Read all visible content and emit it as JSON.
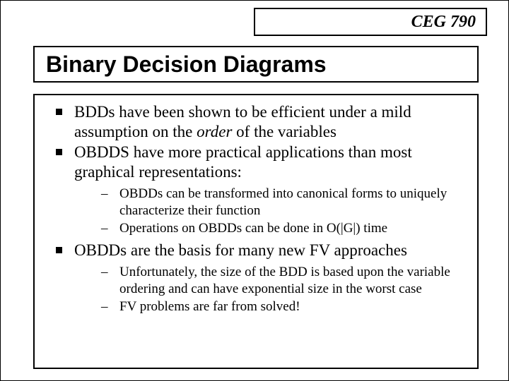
{
  "course": "CEG 790",
  "title": "Binary Decision Diagrams",
  "bullets": {
    "b1_a": "BDDs have been shown to be efficient under a mild assumption on the ",
    "b1_b": "order",
    "b1_c": " of the variables",
    "b2": "OBDDS have more practical applications than most graphical representations:",
    "b2_s1": "OBDDs can be transformed into canonical forms to uniquely characterize their function",
    "b2_s2": "Operations on OBDDs can be done in O(|G|) time",
    "b3": "OBDDs are the basis for many new FV approaches",
    "b3_s1": "Unfortunately, the size of the BDD is based upon the variable ordering and can have exponential size in the worst case",
    "b3_s2": "FV problems are far from solved!"
  }
}
